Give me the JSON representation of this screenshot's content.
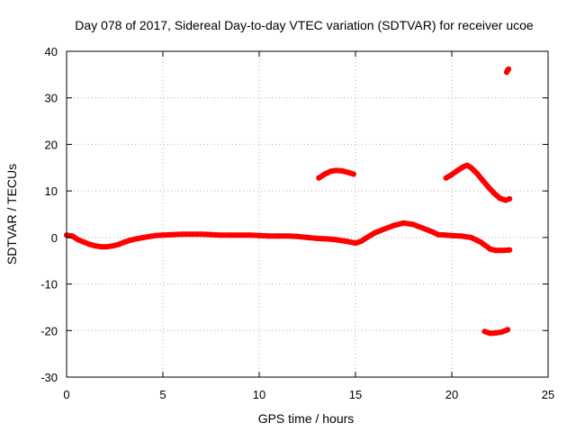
{
  "chart_data": {
    "type": "scatter",
    "title": "Day 078 of 2017, Sidereal Day-to-day VTEC variation (SDTVAR) for receiver ucoe",
    "xlabel": "GPS time / hours",
    "ylabel": "SDTVAR / TECUs",
    "xlim": [
      0,
      25
    ],
    "ylim": [
      -30,
      40
    ],
    "xticks": [
      0,
      5,
      10,
      15,
      20,
      25
    ],
    "yticks": [
      -30,
      -20,
      -10,
      0,
      10,
      20,
      30,
      40
    ],
    "xtick_labels": [
      "0",
      "5",
      "10",
      "15",
      "20",
      "25"
    ],
    "ytick_labels": [
      "-30",
      "-20",
      "-10",
      "0",
      "10",
      "20",
      "30",
      "40"
    ],
    "grid": true,
    "series": [
      {
        "name": "main",
        "color": "#ff0000",
        "x": [
          0.0,
          0.3,
          0.6,
          0.9,
          1.2,
          1.5,
          1.8,
          2.1,
          2.4,
          2.7,
          3.0,
          3.3,
          3.6,
          4.0,
          4.3,
          4.6,
          5.0,
          5.5,
          6.0,
          6.5,
          7.0,
          7.5,
          8.0,
          8.5,
          9.0,
          9.5,
          10.0,
          10.5,
          11.0,
          11.5,
          12.0,
          12.5,
          13.0,
          13.5,
          14.0,
          14.5,
          15.0,
          15.3,
          15.6,
          16.0,
          16.5,
          17.0,
          17.5,
          18.0,
          18.5,
          19.0,
          19.3,
          19.7,
          20.0,
          20.5,
          21.0,
          21.5,
          22.0,
          22.3,
          22.6,
          23.0
        ],
        "y": [
          0.5,
          0.3,
          -0.5,
          -1.0,
          -1.5,
          -1.8,
          -2.0,
          -2.0,
          -1.8,
          -1.5,
          -1.0,
          -0.6,
          -0.3,
          0.0,
          0.2,
          0.4,
          0.5,
          0.6,
          0.7,
          0.7,
          0.7,
          0.6,
          0.5,
          0.5,
          0.5,
          0.5,
          0.4,
          0.3,
          0.3,
          0.3,
          0.2,
          0.0,
          -0.2,
          -0.3,
          -0.5,
          -0.8,
          -1.2,
          -0.8,
          0.0,
          1.0,
          1.8,
          2.6,
          3.1,
          2.8,
          2.0,
          1.2,
          0.6,
          0.5,
          0.4,
          0.3,
          0.0,
          -1.0,
          -2.5,
          -2.8,
          -2.8,
          -2.7
        ]
      },
      {
        "name": "arc-14h",
        "color": "#ff0000",
        "x": [
          13.1,
          13.4,
          13.7,
          14.0,
          14.3,
          14.6,
          14.9
        ],
        "y": [
          12.8,
          13.6,
          14.2,
          14.4,
          14.3,
          14.0,
          13.6
        ]
      },
      {
        "name": "arc-20h",
        "color": "#ff0000",
        "x": [
          19.7,
          20.0,
          20.3,
          20.6,
          20.8,
          21.0,
          21.3,
          21.6,
          21.9,
          22.2,
          22.5,
          22.8,
          23.0
        ],
        "y": [
          12.8,
          13.5,
          14.4,
          15.2,
          15.5,
          15.0,
          13.8,
          12.3,
          10.8,
          9.5,
          8.4,
          8.0,
          8.3
        ]
      },
      {
        "name": "negative-20",
        "color": "#ff0000",
        "x": [
          21.7,
          22.0,
          22.3,
          22.6,
          22.9
        ],
        "y": [
          -20.2,
          -20.6,
          -20.5,
          -20.3,
          -19.8
        ]
      },
      {
        "name": "outlier-36",
        "color": "#ff0000",
        "x": [
          22.85,
          22.9,
          22.95
        ],
        "y": [
          35.5,
          36.0,
          36.2
        ]
      }
    ]
  }
}
